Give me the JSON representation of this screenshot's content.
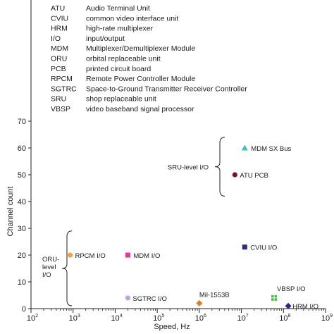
{
  "glossary": [
    {
      "abbr": "ATU",
      "meaning": "Audio Terminal Unit"
    },
    {
      "abbr": "CVIU",
      "meaning": "common video interface unit"
    },
    {
      "abbr": "HRM",
      "meaning": "high-rate multiplexer"
    },
    {
      "abbr": "I/O",
      "meaning": "input/output"
    },
    {
      "abbr": "MDM",
      "meaning": "Multiplexer/Demultiplexer Module"
    },
    {
      "abbr": "ORU",
      "meaning": "orbital replaceable unit"
    },
    {
      "abbr": "PCB",
      "meaning": "printed circuit board"
    },
    {
      "abbr": "RPCM",
      "meaning": "Remote Power Controller Module"
    },
    {
      "abbr": "SGTRC",
      "meaning": "Space-to-Ground Transmitter Receiver Controller"
    },
    {
      "abbr": "SRU",
      "meaning": "shop replaceable unit"
    },
    {
      "abbr": "VBSP",
      "meaning": "video baseband signal processor"
    }
  ],
  "chart_data": {
    "type": "scatter",
    "xlabel": "Speed, Hz",
    "ylabel": "Channel count",
    "xscale": "log",
    "xlim": [
      100,
      1000000000
    ],
    "ylim": [
      0,
      70
    ],
    "x_tick_labels": [
      {
        "value": 100,
        "base": "10",
        "exp": "2"
      },
      {
        "value": 1000,
        "base": "10",
        "exp": "3"
      },
      {
        "value": 10000,
        "base": "10",
        "exp": "4"
      },
      {
        "value": 100000,
        "base": "10",
        "exp": "5"
      },
      {
        "value": 1000000,
        "base": "10",
        "exp": "6"
      },
      {
        "value": 10000000,
        "base": "10",
        "exp": "7"
      },
      {
        "value": 100000000,
        "base": "10",
        "exp": "8"
      },
      {
        "value": 1000000000,
        "base": "10",
        "exp": "9"
      }
    ],
    "y_ticks": [
      0,
      10,
      20,
      30,
      40,
      50,
      60,
      70
    ],
    "grid": false,
    "points": [
      {
        "label": "MDM SX Bus",
        "x": 12000000,
        "y": 60,
        "marker": "triangle",
        "color": "#3bbfc6"
      },
      {
        "label": "ATU PCB",
        "x": 7000000,
        "y": 50,
        "marker": "circle",
        "color": "#7a1020"
      },
      {
        "label": "CVIU I/O",
        "x": 12000000,
        "y": 23,
        "marker": "square",
        "color": "#2a2a8c"
      },
      {
        "label": "RPCM I/O",
        "x": 850,
        "y": 20,
        "marker": "circle",
        "color": "#f4a03c"
      },
      {
        "label": "MDM I/O",
        "x": 20000,
        "y": 20,
        "marker": "square",
        "color": "#e0379a"
      },
      {
        "label": "SGTRC I/O",
        "x": 20000,
        "y": 4,
        "marker": "circle",
        "color": "#c79ee2"
      },
      {
        "label": "Mil-1553B",
        "x": 1000000,
        "y": 2,
        "marker": "diamond",
        "color": "#e07a2a"
      },
      {
        "label": "VBSP I/O",
        "x": 60000000,
        "y": 4,
        "marker": "square-cross",
        "color": "#3fbf3f"
      },
      {
        "label": "HRM I/O",
        "x": 130000000,
        "y": 1,
        "marker": "diamond",
        "color": "#1c2a8c"
      }
    ],
    "groups": [
      {
        "label_lines": [
          "SRU-level I/O"
        ],
        "y_range": [
          42,
          64
        ]
      },
      {
        "label_lines": [
          "ORU-",
          "level",
          "I/O"
        ],
        "y_range": [
          0,
          29
        ]
      }
    ]
  }
}
